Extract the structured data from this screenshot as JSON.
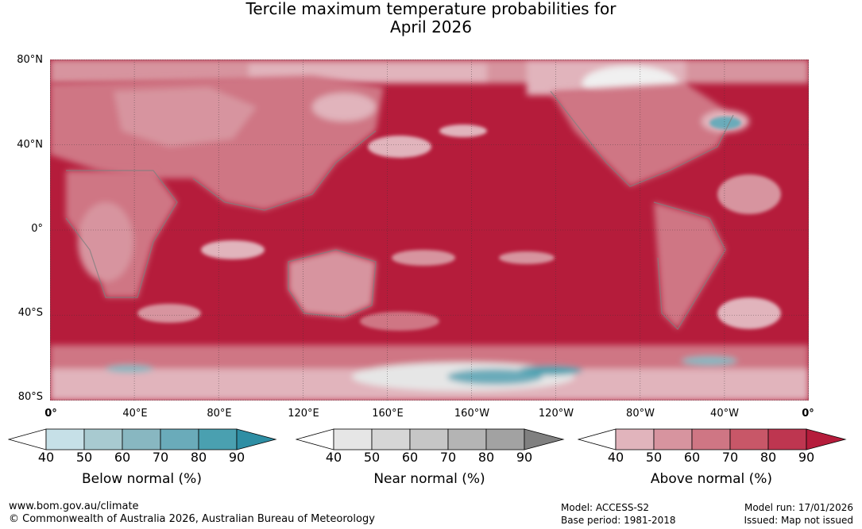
{
  "title": {
    "line1": "Tercile maximum temperature probabilities for",
    "line2": "April 2026"
  },
  "map": {
    "lat_labels": [
      "80°N",
      "40°N",
      "0°",
      "40°S",
      "80°S"
    ],
    "lon_labels": [
      "0°",
      "40°E",
      "80°E",
      "120°E",
      "160°E",
      "160°W",
      "120°W",
      "80°W",
      "40°W",
      "0°"
    ],
    "ocean_color": "#b51c3b",
    "land_outline_color": "#7f7f7f"
  },
  "colorbars": [
    {
      "label": "Below normal (%)",
      "ticks": [
        "40",
        "50",
        "60",
        "70",
        "80",
        "90"
      ],
      "colors": [
        "#ffffff",
        "#c6e0e7",
        "#a8cad0",
        "#88b7c1",
        "#6aabba",
        "#4aa0b0",
        "#2e8ea4"
      ]
    },
    {
      "label": "Near normal (%)",
      "ticks": [
        "40",
        "50",
        "60",
        "70",
        "80",
        "90"
      ],
      "colors": [
        "#ffffff",
        "#e6e6e6",
        "#d6d6d6",
        "#c6c6c6",
        "#b4b4b4",
        "#a2a2a2",
        "#808080"
      ]
    },
    {
      "label": "Above normal (%)",
      "ticks": [
        "40",
        "50",
        "60",
        "70",
        "80",
        "90"
      ],
      "colors": [
        "#ffffff",
        "#e1b4bc",
        "#d7949f",
        "#cf7684",
        "#c85768",
        "#be3650",
        "#b51c3b"
      ]
    }
  ],
  "footer": {
    "site": "www.bom.gov.au/climate",
    "copyright": "© Commonwealth of Australia 2026, Australian Bureau of Meteorology",
    "model": "Model: ACCESS-S2",
    "base_period": "Base period: 1981-2018",
    "model_run": "Model run: 17/01/2026",
    "issued": "Issued: Map not issued"
  }
}
